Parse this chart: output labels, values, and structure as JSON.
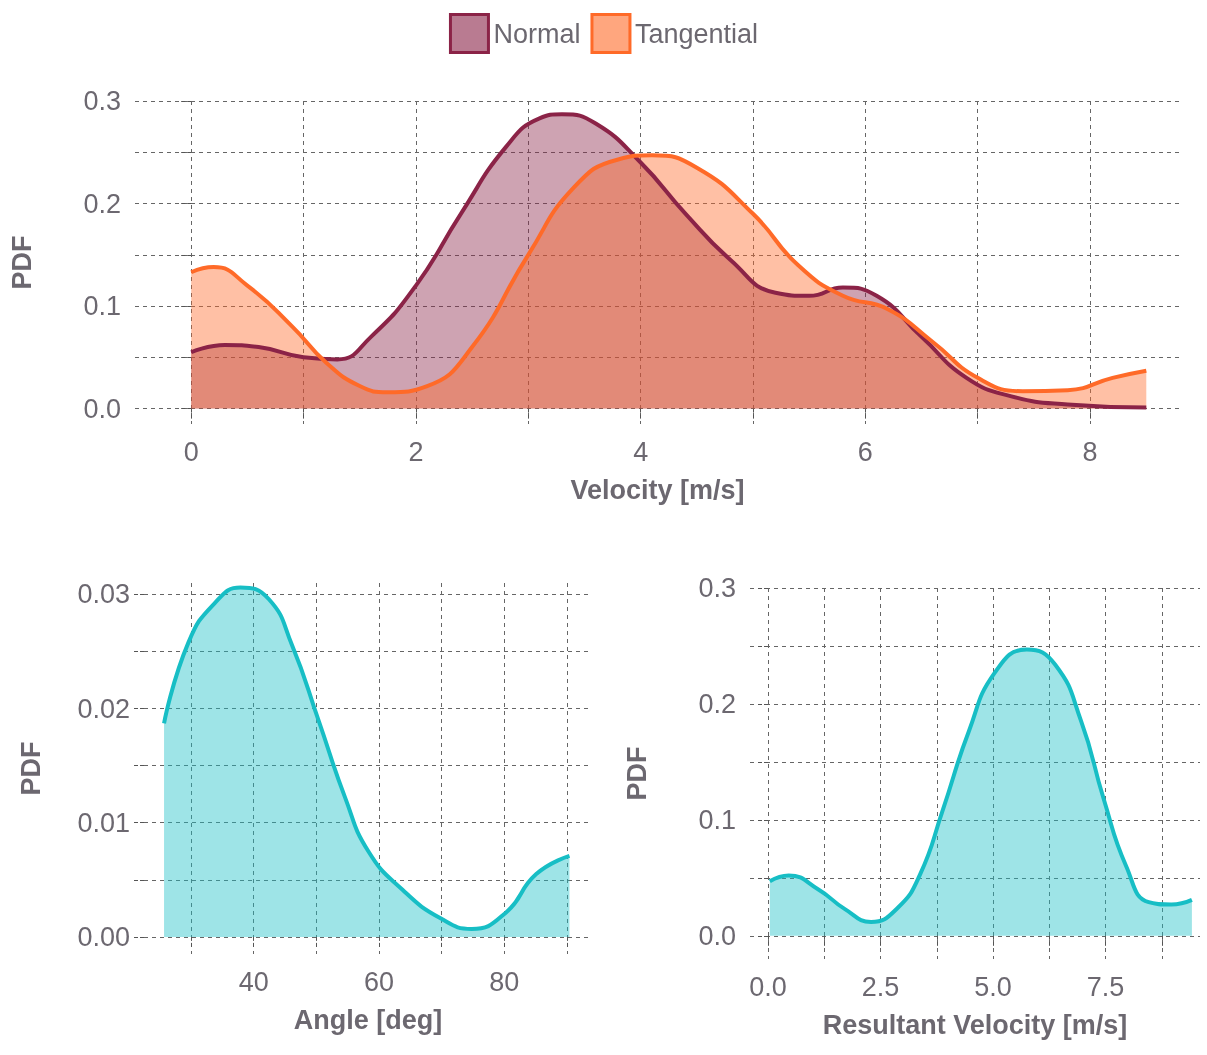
{
  "chart_data": [
    {
      "type": "area",
      "xlabel": "Velocity [m/s]",
      "ylabel": "PDF",
      "legend": "top",
      "grid": true,
      "marker": "none",
      "xlim": [
        -0.5,
        8.8
      ],
      "xticks": [
        0,
        {
          "value": 1,
          "label": null
        },
        2,
        {
          "value": 3,
          "label": null
        },
        4,
        {
          "value": 5,
          "label": null
        },
        6,
        {
          "value": 7,
          "label": null
        },
        8
      ],
      "ylim": [
        -0.015,
        0.3
      ],
      "yticks": [
        {
          "value": 0,
          "label": "0.0"
        },
        {
          "value": 0.05,
          "label": null
        },
        0.1,
        {
          "value": 0.15,
          "label": null
        },
        0.2,
        {
          "value": 0.25,
          "label": null
        },
        0.3
      ],
      "series": [
        {
          "name": "Normal",
          "color": "#8b2347",
          "x": [
            0,
            0.3,
            0.6,
            1.0,
            1.3,
            1.6,
            2.0,
            2.4,
            2.8,
            3.1,
            3.3,
            3.6,
            4.0,
            4.4,
            4.8,
            5.2,
            5.5,
            5.8,
            6.1,
            6.5,
            6.9,
            7.3,
            7.8,
            8.5
          ],
          "values": [
            0.055,
            0.062,
            0.06,
            0.05,
            0.048,
            0.07,
            0.12,
            0.19,
            0.255,
            0.283,
            0.287,
            0.278,
            0.24,
            0.19,
            0.145,
            0.113,
            0.11,
            0.118,
            0.11,
            0.07,
            0.03,
            0.012,
            0.004,
            0.001
          ]
        },
        {
          "name": "Tangential",
          "color": "#ff6a28",
          "x": [
            0,
            0.2,
            0.5,
            0.9,
            1.2,
            1.5,
            1.75,
            2.1,
            2.5,
            3.0,
            3.4,
            3.8,
            4.1,
            4.5,
            5.0,
            5.4,
            5.8,
            6.2,
            6.6,
            7.0,
            7.4,
            7.8,
            8.2,
            8.5
          ],
          "values": [
            0.133,
            0.138,
            0.12,
            0.08,
            0.045,
            0.022,
            0.016,
            0.022,
            0.06,
            0.15,
            0.215,
            0.243,
            0.247,
            0.235,
            0.19,
            0.14,
            0.11,
            0.097,
            0.065,
            0.03,
            0.017,
            0.018,
            0.03,
            0.037
          ]
        }
      ]
    },
    {
      "type": "area",
      "xlabel": "Angle [deg]",
      "ylabel": "PDF",
      "grid": true,
      "marker": "none",
      "xlim": [
        22.5,
        94
      ],
      "xticks": [
        {
          "value": 30,
          "label": null
        },
        40,
        {
          "value": 50,
          "label": null
        },
        60,
        {
          "value": 70,
          "label": null
        },
        80,
        {
          "value": 90,
          "label": null
        }
      ],
      "ylim": [
        -0.0015,
        0.031
      ],
      "yticks": [
        {
          "value": 0,
          "label": "0.00"
        },
        {
          "value": 0.005,
          "label": null
        },
        0.01,
        {
          "value": 0.015,
          "label": null
        },
        0.02,
        {
          "value": 0.025,
          "label": null
        },
        0.03
      ],
      "series": [
        {
          "color": "#17bec5",
          "x": [
            25.7,
            29.6,
            33.9,
            37.9,
            42.4,
            46.1,
            50.4,
            54.6,
            58.3,
            63.8,
            69.9,
            74.8,
            80.2,
            85.1,
            90.4
          ],
          "values": [
            0.0187,
            0.0258,
            0.0293,
            0.0306,
            0.0296,
            0.0256,
            0.0189,
            0.0122,
            0.0075,
            0.0041,
            0.0016,
            0.0007,
            0.0021,
            0.0055,
            0.0071
          ]
        }
      ]
    },
    {
      "type": "area",
      "xlabel": "Resultant Velocity [m/s]",
      "ylabel": "PDF",
      "grid": true,
      "marker": "none",
      "xlim": [
        -0.4,
        9.6
      ],
      "xticks": [
        {
          "value": 0,
          "label": "0.0"
        },
        {
          "value": 1.25,
          "label": null
        },
        2.5,
        {
          "value": 3.75,
          "label": null
        },
        {
          "value": 5,
          "label": "5.0"
        },
        {
          "value": 6.25,
          "label": null
        },
        7.5,
        {
          "value": 8.75,
          "label": null
        }
      ],
      "ylim": [
        -0.02,
        0.3
      ],
      "yticks": [
        {
          "value": 0,
          "label": "0.0"
        },
        {
          "value": 0.05,
          "label": null
        },
        0.1,
        {
          "value": 0.15,
          "label": null
        },
        0.2,
        {
          "value": 0.25,
          "label": null
        },
        0.3
      ],
      "series": [
        {
          "color": "#17bec5",
          "x": [
            0.04,
            0.46,
            1.12,
            1.71,
            2.29,
            2.88,
            3.38,
            3.88,
            4.46,
            5.04,
            5.75,
            6.38,
            6.96,
            7.46,
            7.96,
            8.46,
            8.96,
            9.42
          ],
          "values": [
            0.047,
            0.052,
            0.04,
            0.023,
            0.012,
            0.024,
            0.053,
            0.108,
            0.176,
            0.227,
            0.247,
            0.234,
            0.185,
            0.118,
            0.06,
            0.029,
            0.027,
            0.031
          ]
        }
      ]
    }
  ]
}
